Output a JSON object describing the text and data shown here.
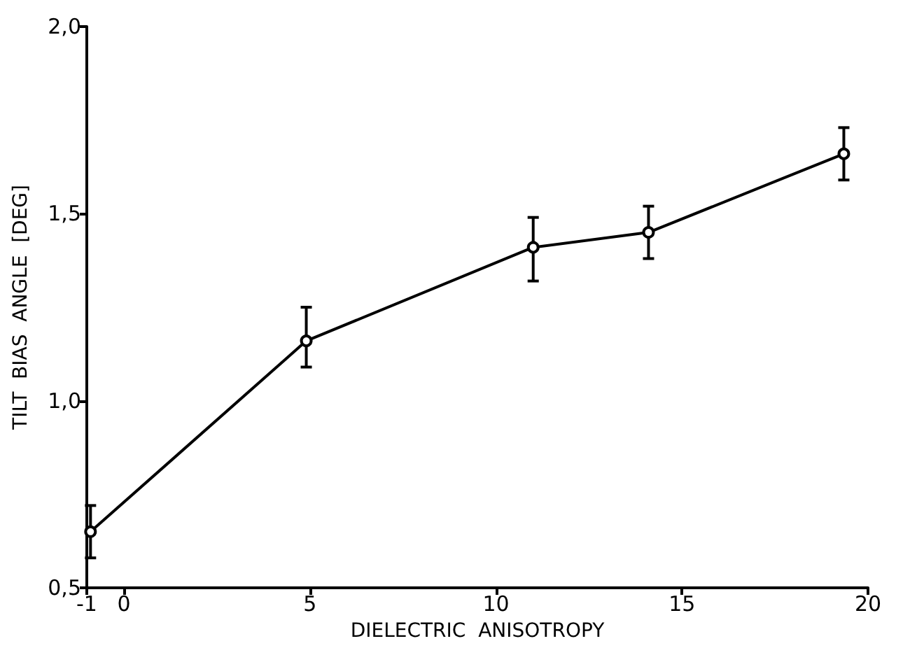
{
  "chart_data": {
    "type": "line",
    "xlabel": "DIELECTRIC  ANISOTROPY",
    "ylabel": "TILT  BIAS  ANGLE  [DEG]",
    "x": [
      -0.9,
      4.9,
      11.0,
      14.1,
      19.35
    ],
    "values": [
      0.65,
      1.16,
      1.41,
      1.45,
      1.66
    ],
    "errors": [
      [
        0.58,
        0.72
      ],
      [
        1.09,
        1.25
      ],
      [
        1.32,
        1.49
      ],
      [
        1.38,
        1.52
      ],
      [
        1.59,
        1.73
      ]
    ],
    "color": "#000000",
    "marker": "circle",
    "grid": false,
    "xlim": [
      -1,
      20
    ],
    "xticks": [
      -1,
      0,
      5,
      10,
      15,
      20
    ],
    "ylim": [
      0.5,
      2.0
    ],
    "yticks": [
      {
        "value": 0.5,
        "label": "0,5"
      },
      {
        "value": 1.0,
        "label": "1,0"
      },
      {
        "value": 1.5,
        "label": "1,5"
      },
      {
        "value": 2.0,
        "label": "2,0"
      }
    ]
  }
}
